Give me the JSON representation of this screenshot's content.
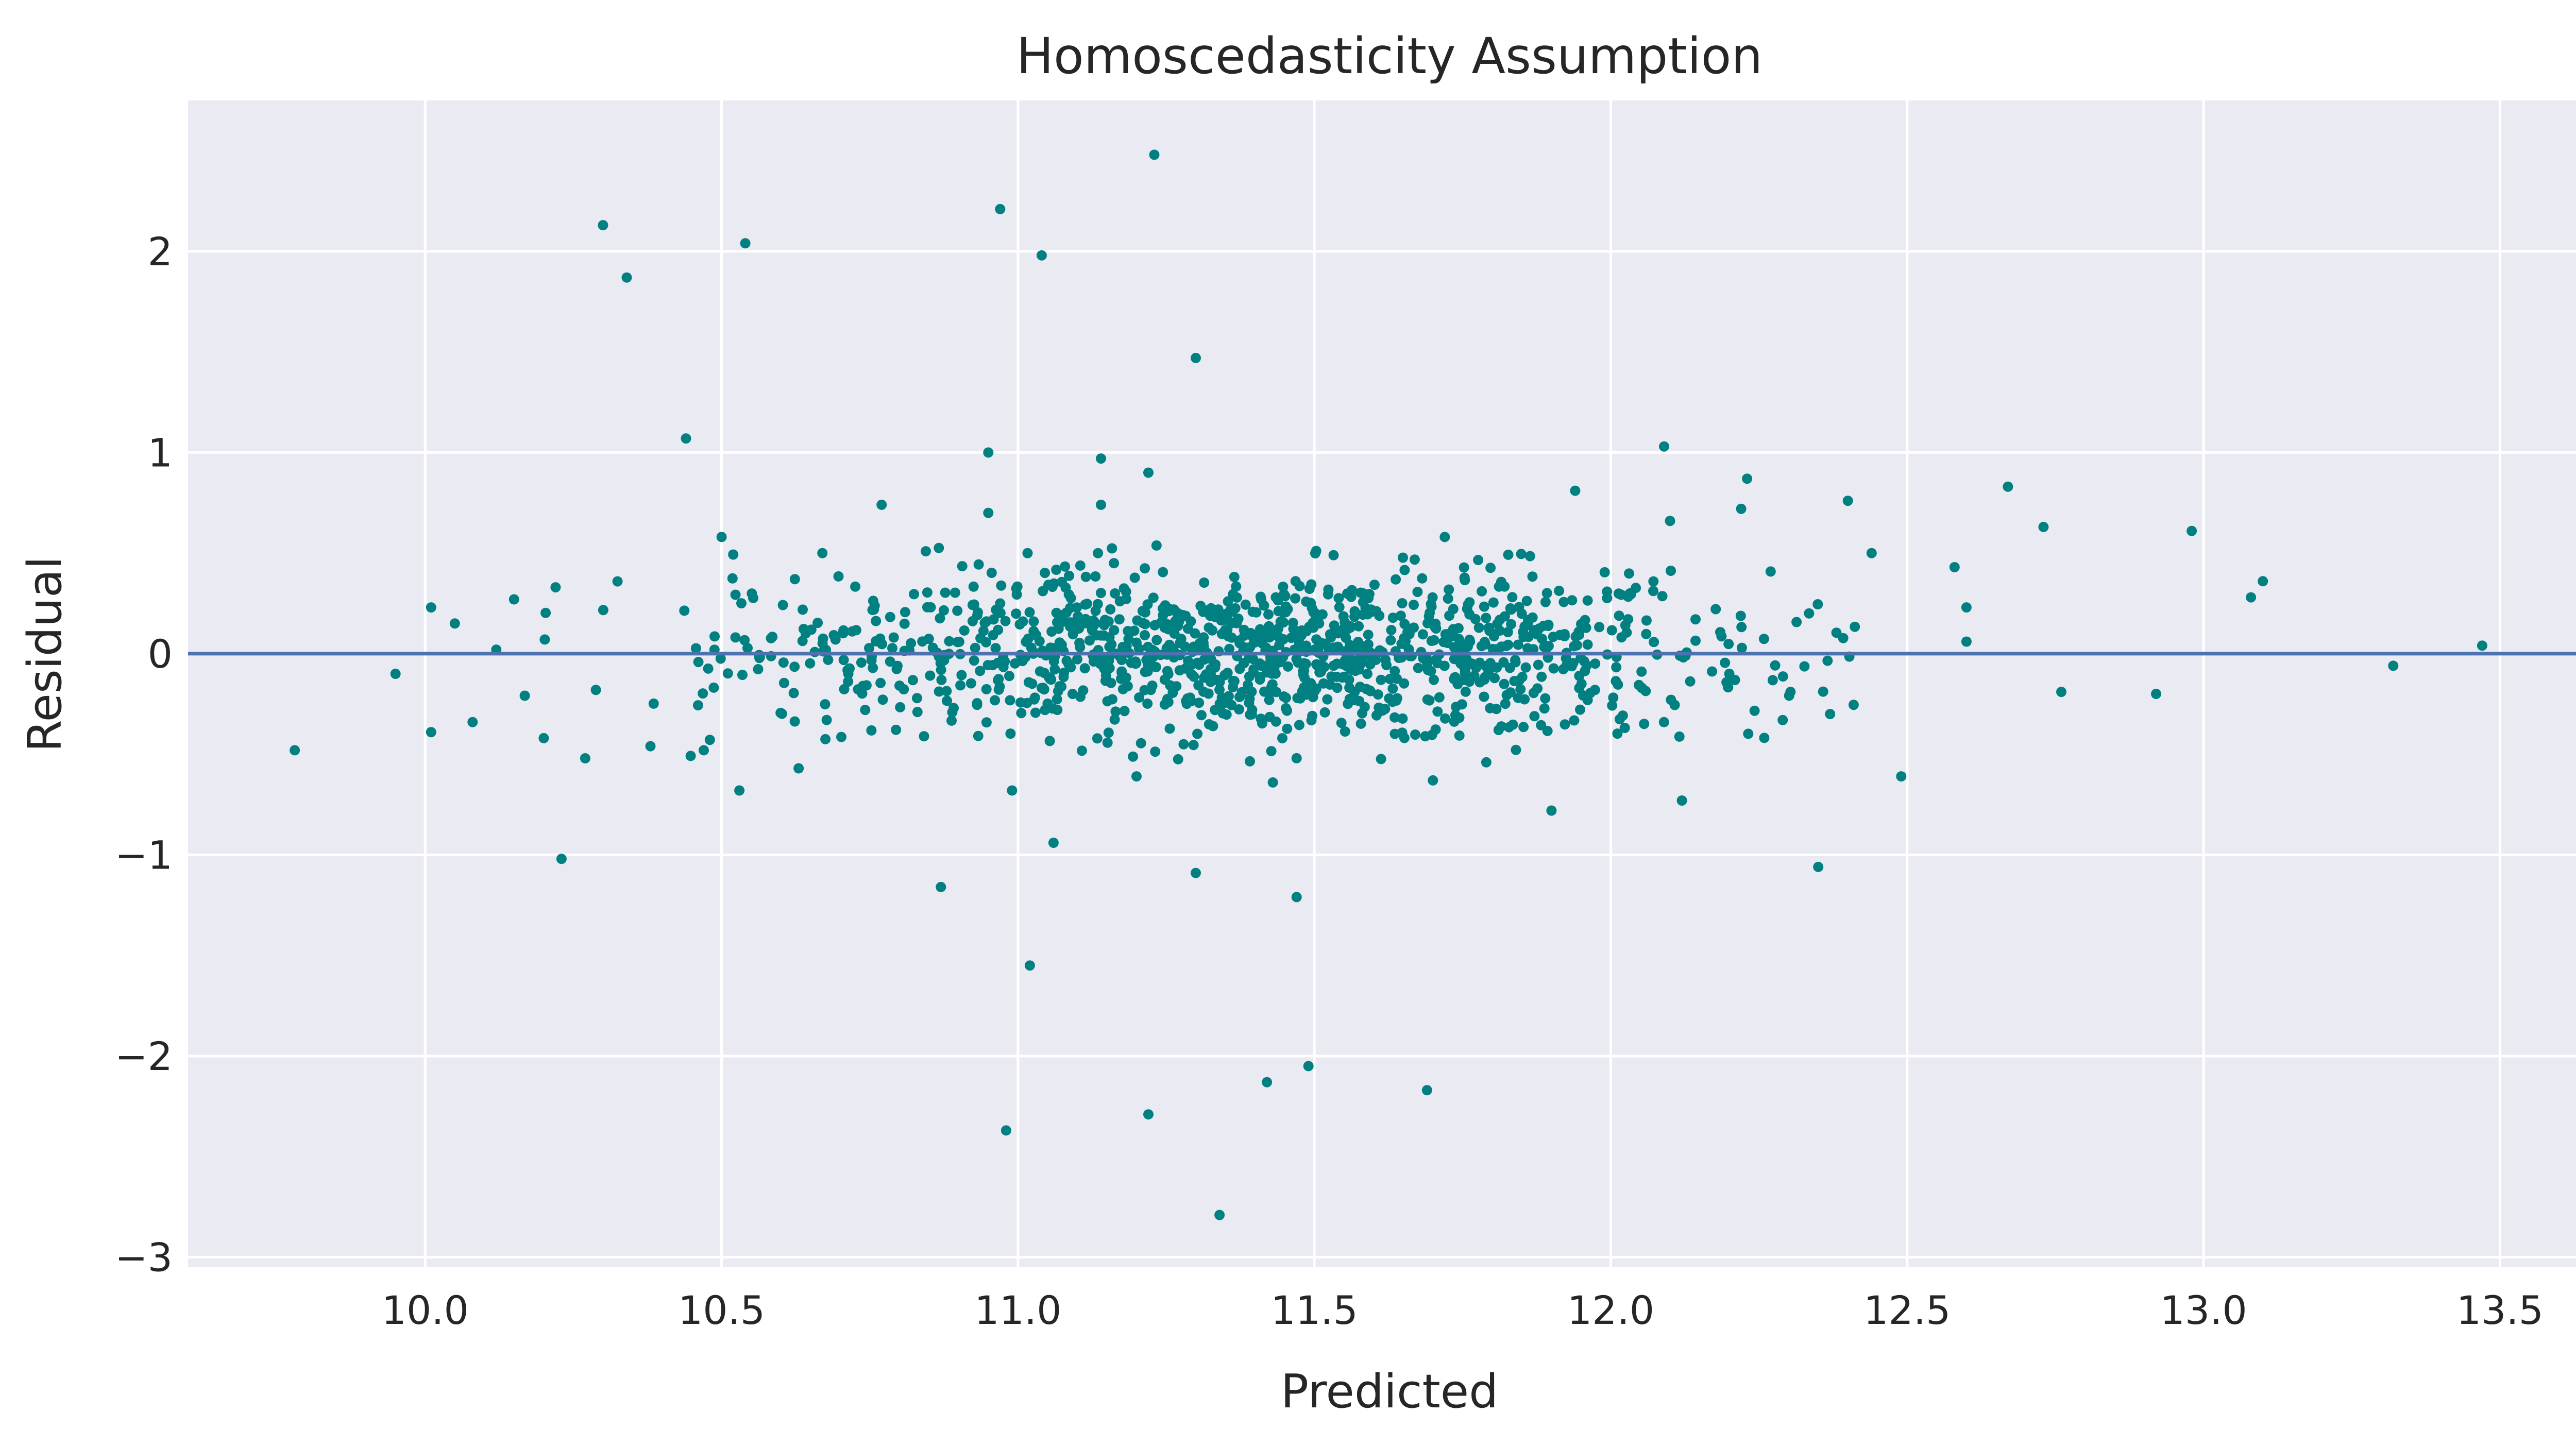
{
  "chart_data": {
    "type": "scatter",
    "title": "Homoscedasticity Assumption",
    "xlabel": "Predicted",
    "ylabel": "Residual",
    "xlim": [
      9.6,
      13.65
    ],
    "ylim": [
      -3.05,
      2.75
    ],
    "xticks": [
      "10.0",
      "10.5",
      "11.0",
      "11.5",
      "12.0",
      "12.5",
      "13.0",
      "13.5"
    ],
    "yticks": [
      "2",
      "1",
      "0",
      "−1",
      "−2",
      "−3"
    ],
    "grid": true,
    "reference_line": {
      "y": 0,
      "color": "#4c72b0"
    },
    "colors": {
      "background": "#eaeaf2",
      "grid": "#ffffff",
      "points": "#008080"
    },
    "series": [
      {
        "points": [
          [
            9.78,
            -0.48
          ],
          [
            9.95,
            -0.1
          ],
          [
            10.01,
            0.23
          ],
          [
            10.01,
            -0.39
          ],
          [
            10.05,
            0.15
          ],
          [
            10.08,
            -0.34
          ],
          [
            10.12,
            0.02
          ],
          [
            10.15,
            0.27
          ],
          [
            10.2,
            -0.42
          ],
          [
            10.22,
            0.33
          ],
          [
            10.23,
            -1.02
          ],
          [
            10.27,
            -0.52
          ],
          [
            10.3,
            2.13
          ],
          [
            10.34,
            1.87
          ],
          [
            10.38,
            -0.46
          ],
          [
            10.44,
            1.07
          ],
          [
            10.47,
            -0.48
          ],
          [
            10.5,
            0.58
          ],
          [
            10.53,
            -0.68
          ],
          [
            10.54,
            2.04
          ],
          [
            10.63,
            -0.57
          ],
          [
            10.67,
            0.5
          ],
          [
            10.77,
            0.74
          ],
          [
            10.87,
            -1.16
          ],
          [
            10.95,
            1.0
          ],
          [
            10.95,
            0.7
          ],
          [
            10.97,
            2.21
          ],
          [
            10.98,
            -2.37
          ],
          [
            10.99,
            -0.68
          ],
          [
            11.02,
            -1.55
          ],
          [
            11.04,
            1.98
          ],
          [
            11.06,
            -0.94
          ],
          [
            11.14,
            0.97
          ],
          [
            11.14,
            0.74
          ],
          [
            11.2,
            -0.61
          ],
          [
            11.22,
            -2.29
          ],
          [
            11.22,
            0.9
          ],
          [
            11.23,
            2.48
          ],
          [
            11.3,
            1.47
          ],
          [
            11.3,
            -1.09
          ],
          [
            11.34,
            -2.79
          ],
          [
            11.42,
            -2.13
          ],
          [
            11.43,
            -0.64
          ],
          [
            11.47,
            -1.21
          ],
          [
            11.49,
            -2.05
          ],
          [
            11.69,
            -2.17
          ],
          [
            11.7,
            -0.63
          ],
          [
            11.72,
            0.58
          ],
          [
            11.79,
            -0.54
          ],
          [
            11.9,
            -0.78
          ],
          [
            11.94,
            0.81
          ],
          [
            12.09,
            1.03
          ],
          [
            12.1,
            0.66
          ],
          [
            12.12,
            -0.73
          ],
          [
            12.22,
            0.72
          ],
          [
            12.23,
            0.87
          ],
          [
            12.35,
            -1.06
          ],
          [
            12.4,
            0.76
          ],
          [
            12.49,
            -0.61
          ],
          [
            12.67,
            0.83
          ],
          [
            12.73,
            0.63
          ],
          [
            12.76,
            -0.19
          ],
          [
            12.92,
            -0.2
          ],
          [
            12.98,
            0.61
          ],
          [
            13.08,
            0.28
          ],
          [
            13.1,
            0.36
          ],
          [
            13.32,
            -0.06
          ],
          [
            13.47,
            0.04
          ],
          [
            12.6,
            0.23
          ],
          [
            12.6,
            0.06
          ],
          [
            12.58,
            0.43
          ],
          [
            12.44,
            0.5
          ],
          [
            12.37,
            -0.3
          ],
          [
            12.29,
            -0.33
          ],
          [
            12.2,
            -0.1
          ]
        ]
      }
    ],
    "dense_cluster": {
      "x_center": 11.4,
      "x_range": [
        10.05,
        12.45
      ],
      "y_spread": 0.2,
      "count": 1200
    }
  }
}
